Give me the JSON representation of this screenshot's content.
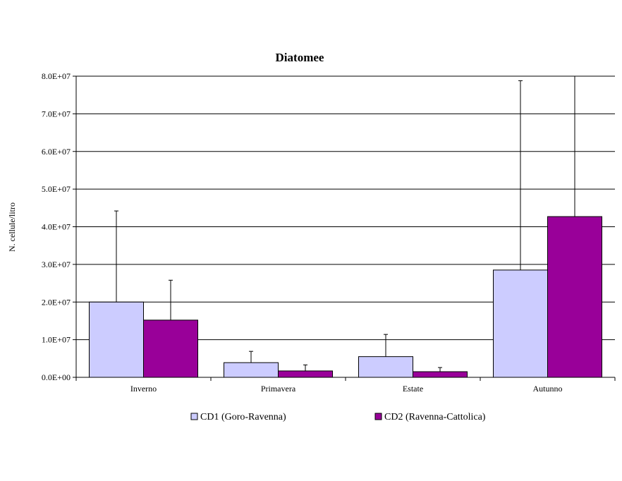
{
  "chart_data": {
    "type": "bar",
    "title": "Diatomee",
    "ylabel": "N. cellule/litro",
    "xlabel": "",
    "categories": [
      "Inverno",
      "Primavera",
      "Estate",
      "Autunno"
    ],
    "ylim": [
      0,
      80000000
    ],
    "yticks": [
      0,
      10000000,
      20000000,
      30000000,
      40000000,
      50000000,
      60000000,
      70000000,
      80000000
    ],
    "ytick_labels": [
      "0.0E+00",
      "1.0E+07",
      "2.0E+07",
      "3.0E+07",
      "4.0E+07",
      "5.0E+07",
      "6.0E+07",
      "7.0E+07",
      "8.0E+07"
    ],
    "grid": true,
    "legend_position": "bottom",
    "error_bars": "upper only",
    "series": [
      {
        "name": "CD1 (Goro-Ravenna)",
        "color": "#ccccff",
        "values": [
          20000000,
          3900000,
          5500000,
          28500000
        ],
        "errors": [
          24200000,
          3000000,
          5900000,
          50300000
        ]
      },
      {
        "name": "CD2 (Ravenna-Cattolica)",
        "color": "#990099",
        "values": [
          15200000,
          1700000,
          1500000,
          42700000
        ],
        "errors": [
          10600000,
          1600000,
          1100000,
          42000000
        ]
      }
    ]
  }
}
